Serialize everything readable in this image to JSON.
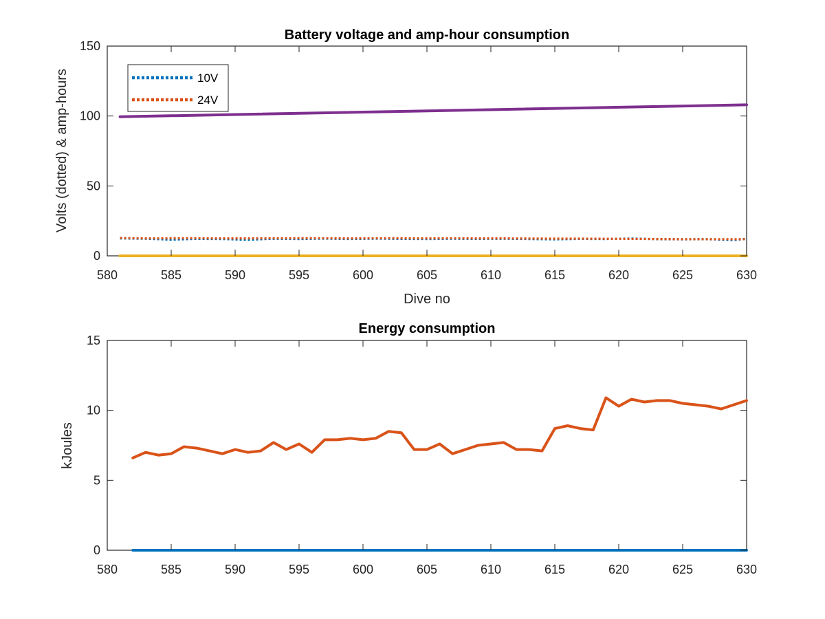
{
  "chart_data": [
    {
      "type": "line",
      "title": "Battery voltage and amp-hour consumption",
      "xlabel": "Dive no",
      "ylabel": "Volts (dotted) & amp-hours",
      "xlim": [
        580,
        630
      ],
      "ylim": [
        0,
        150
      ],
      "xticks": [
        580,
        585,
        590,
        595,
        600,
        605,
        610,
        615,
        620,
        625,
        630
      ],
      "yticks": [
        0,
        50,
        100,
        150
      ],
      "grid": false,
      "legend_position": "top-left",
      "series": [
        {
          "name": "10V",
          "style": "dotted",
          "color": "#0072BD",
          "x": [
            581,
            583,
            585,
            587,
            589,
            591,
            593,
            595,
            597,
            599,
            601,
            603,
            605,
            607,
            609,
            611,
            613,
            615,
            617,
            619,
            621,
            623,
            625,
            627,
            629,
            630
          ],
          "y": [
            12.5,
            12.2,
            11.6,
            12.1,
            12.0,
            11.5,
            12.2,
            12.0,
            12.3,
            12.0,
            12.3,
            12.1,
            12.0,
            12.2,
            12.1,
            12.2,
            12.0,
            11.8,
            12.1,
            12.0,
            12.4,
            11.9,
            11.8,
            11.9,
            11.3,
            12.2
          ]
        },
        {
          "name": "24V",
          "style": "dotted",
          "color": "#D95319",
          "x": [
            581,
            583,
            585,
            587,
            589,
            591,
            593,
            595,
            597,
            599,
            601,
            603,
            605,
            607,
            609,
            611,
            613,
            615,
            617,
            619,
            621,
            623,
            625,
            627,
            629,
            630
          ],
          "y": [
            12.8,
            12.5,
            12.6,
            12.6,
            12.5,
            12.5,
            12.6,
            12.6,
            12.6,
            12.5,
            12.6,
            12.6,
            12.5,
            12.6,
            12.5,
            12.5,
            12.4,
            12.3,
            12.3,
            12.2,
            12.1,
            12.0,
            11.9,
            11.9,
            11.9,
            11.9
          ]
        },
        {
          "style": "solid",
          "color": "#7E2F8E",
          "x": [
            581,
            630
          ],
          "y": [
            99.5,
            108.0
          ]
        },
        {
          "style": "solid",
          "color": "#EDB120",
          "x": [
            581,
            630
          ],
          "y": [
            0,
            0
          ]
        }
      ]
    },
    {
      "type": "line",
      "title": "Energy consumption",
      "xlabel": "",
      "ylabel": "kJoules",
      "xlim": [
        580,
        630
      ],
      "ylim": [
        0,
        15
      ],
      "xticks": [
        580,
        585,
        590,
        595,
        600,
        605,
        610,
        615,
        620,
        625,
        630
      ],
      "yticks": [
        0,
        5,
        10,
        15
      ],
      "grid": false,
      "series": [
        {
          "style": "solid",
          "color": "#D95319",
          "x": [
            582,
            583,
            584,
            585,
            586,
            587,
            588,
            589,
            590,
            591,
            592,
            593,
            594,
            595,
            596,
            597,
            598,
            599,
            600,
            601,
            602,
            603,
            604,
            605,
            606,
            607,
            608,
            609,
            610,
            611,
            612,
            613,
            614,
            615,
            616,
            617,
            618,
            619,
            620,
            621,
            622,
            623,
            624,
            625,
            626,
            627,
            628,
            629,
            630
          ],
          "y": [
            6.6,
            7.0,
            6.8,
            6.9,
            7.4,
            7.3,
            7.1,
            6.9,
            7.2,
            7.0,
            7.1,
            7.7,
            7.2,
            7.6,
            7.0,
            7.9,
            7.9,
            8.0,
            7.9,
            8.0,
            8.5,
            8.4,
            7.2,
            7.2,
            7.6,
            6.9,
            7.2,
            7.5,
            7.6,
            7.7,
            7.2,
            7.2,
            7.1,
            8.7,
            8.9,
            8.7,
            8.6,
            10.9,
            10.3,
            10.8,
            10.6,
            10.7,
            10.7,
            10.5,
            10.4,
            10.3,
            10.1,
            10.4,
            10.7
          ]
        },
        {
          "style": "solid",
          "color": "#0072BD",
          "x": [
            582,
            630
          ],
          "y": [
            0,
            0
          ]
        }
      ]
    }
  ]
}
